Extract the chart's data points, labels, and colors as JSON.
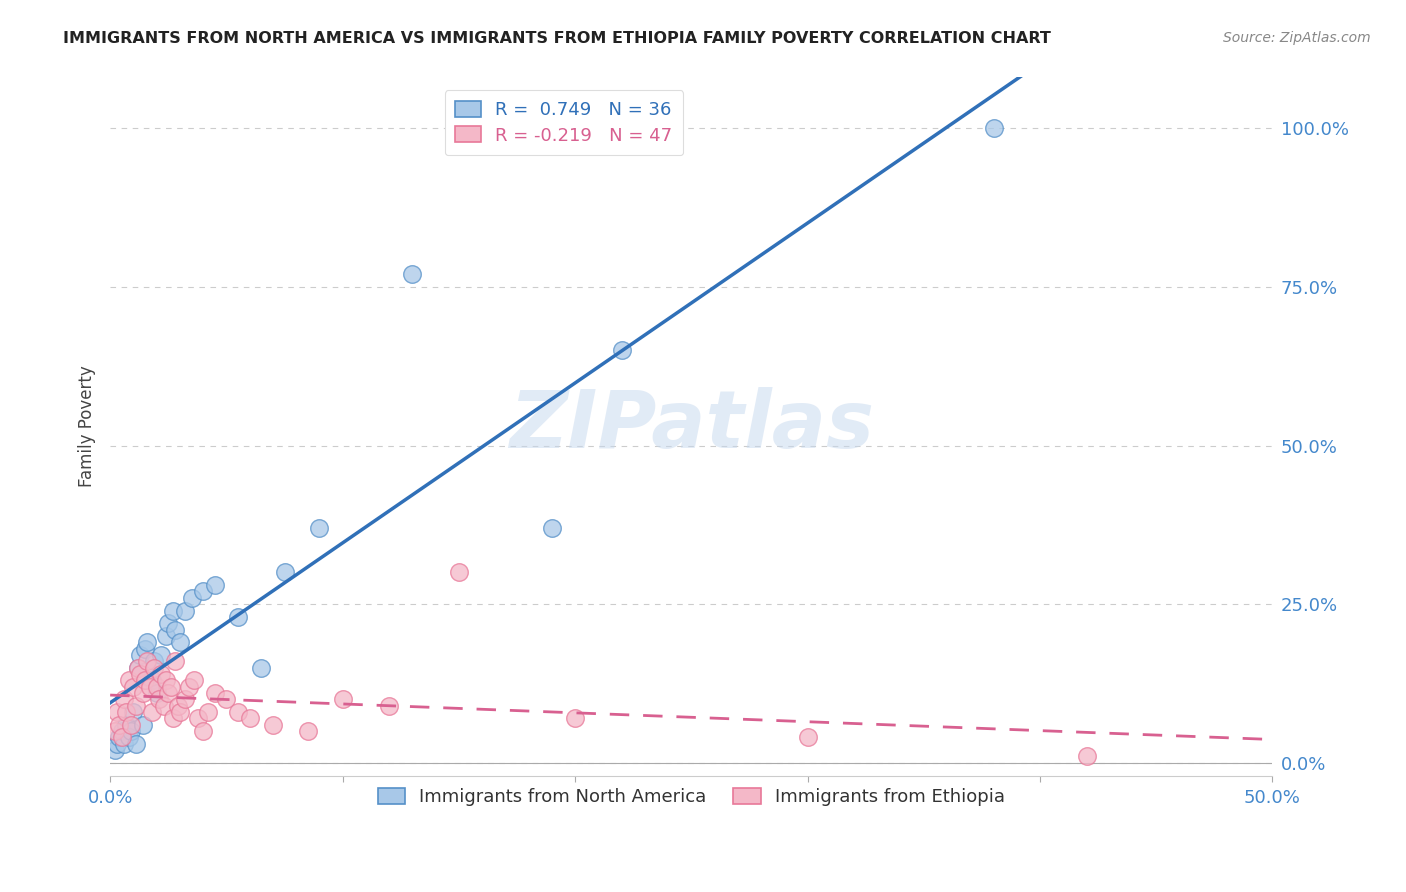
{
  "title": "IMMIGRANTS FROM NORTH AMERICA VS IMMIGRANTS FROM ETHIOPIA FAMILY POVERTY CORRELATION CHART",
  "source": "Source: ZipAtlas.com",
  "ylabel": "Family Poverty",
  "xlim": [
    0.0,
    0.5
  ],
  "ylim": [
    -0.02,
    1.08
  ],
  "ytick_vals": [
    0.0,
    0.25,
    0.5,
    0.75,
    1.0
  ],
  "ytick_labels": [
    "0.0%",
    "25.0%",
    "50.0%",
    "75.0%",
    "100.0%"
  ],
  "blue_R": 0.749,
  "blue_N": 36,
  "pink_R": -0.219,
  "pink_N": 47,
  "blue_color": "#a8c8e8",
  "pink_color": "#f4b8c8",
  "blue_edge_color": "#5590c8",
  "pink_edge_color": "#e87898",
  "blue_line_color": "#3070b8",
  "pink_line_color": "#d86090",
  "tick_color": "#4488cc",
  "legend_label_blue": "Immigrants from North America",
  "legend_label_pink": "Immigrants from Ethiopia",
  "watermark": "ZIPatlas",
  "blue_x": [
    0.002,
    0.003,
    0.004,
    0.005,
    0.006,
    0.007,
    0.008,
    0.009,
    0.01,
    0.011,
    0.012,
    0.013,
    0.014,
    0.015,
    0.016,
    0.018,
    0.019,
    0.02,
    0.022,
    0.024,
    0.025,
    0.027,
    0.028,
    0.03,
    0.032,
    0.035,
    0.04,
    0.045,
    0.055,
    0.065,
    0.075,
    0.09,
    0.13,
    0.19,
    0.22,
    0.38
  ],
  "blue_y": [
    0.02,
    0.03,
    0.04,
    0.05,
    0.03,
    0.06,
    0.04,
    0.05,
    0.08,
    0.03,
    0.15,
    0.17,
    0.06,
    0.18,
    0.19,
    0.13,
    0.16,
    0.11,
    0.17,
    0.2,
    0.22,
    0.24,
    0.21,
    0.19,
    0.24,
    0.26,
    0.27,
    0.28,
    0.23,
    0.15,
    0.3,
    0.37,
    0.77,
    0.37,
    0.65,
    1.0
  ],
  "pink_x": [
    0.002,
    0.003,
    0.004,
    0.005,
    0.006,
    0.007,
    0.008,
    0.009,
    0.01,
    0.011,
    0.012,
    0.013,
    0.014,
    0.015,
    0.016,
    0.017,
    0.018,
    0.019,
    0.02,
    0.021,
    0.022,
    0.023,
    0.024,
    0.025,
    0.026,
    0.027,
    0.028,
    0.029,
    0.03,
    0.032,
    0.034,
    0.036,
    0.038,
    0.04,
    0.042,
    0.045,
    0.05,
    0.055,
    0.06,
    0.07,
    0.085,
    0.1,
    0.12,
    0.15,
    0.2,
    0.3,
    0.42
  ],
  "pink_y": [
    0.05,
    0.08,
    0.06,
    0.04,
    0.1,
    0.08,
    0.13,
    0.06,
    0.12,
    0.09,
    0.15,
    0.14,
    0.11,
    0.13,
    0.16,
    0.12,
    0.08,
    0.15,
    0.12,
    0.1,
    0.14,
    0.09,
    0.13,
    0.11,
    0.12,
    0.07,
    0.16,
    0.09,
    0.08,
    0.1,
    0.12,
    0.13,
    0.07,
    0.05,
    0.08,
    0.11,
    0.1,
    0.08,
    0.07,
    0.06,
    0.05,
    0.1,
    0.09,
    0.3,
    0.07,
    0.04,
    0.01
  ],
  "grid_color": "#cccccc",
  "background_color": "#ffffff"
}
